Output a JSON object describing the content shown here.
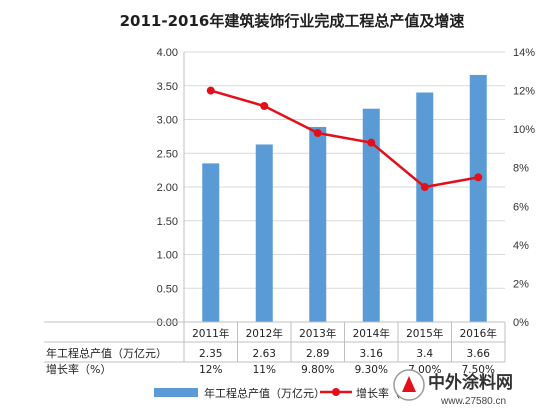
{
  "chart_data": {
    "type": "bar",
    "title": "2011-2016年建筑装饰行业完成工程总产值及增速",
    "categories": [
      "2011年",
      "2012年",
      "2013年",
      "2014年",
      "2015年",
      "2016年"
    ],
    "series": [
      {
        "name": "年工程总产值（万亿元）",
        "type": "bar",
        "axis": "left",
        "color": "#5b9bd5",
        "values": [
          2.35,
          2.63,
          2.89,
          3.16,
          3.4,
          3.66
        ]
      },
      {
        "name": "增长率（%）",
        "type": "line",
        "axis": "right",
        "color": "#e3101b",
        "values": [
          12,
          11.2,
          9.8,
          9.3,
          7.0,
          7.5
        ]
      }
    ],
    "ylim_left": [
      0,
      4
    ],
    "yticks_left": [
      "0.00",
      "0.50",
      "1.00",
      "1.50",
      "2.00",
      "2.50",
      "3.00",
      "3.50",
      "4.00"
    ],
    "ylim_right": [
      0,
      14
    ],
    "yticks_right": [
      "0%",
      "2%",
      "4%",
      "6%",
      "8%",
      "10%",
      "12%",
      "14%"
    ],
    "legend_position": "bottom",
    "data_table": {
      "rows": [
        {
          "header": "年工程总产值（万亿元）",
          "cells": [
            "2.35",
            "2.63",
            "2.89",
            "3.16",
            "3.4",
            "3.66"
          ]
        },
        {
          "header": "增长率（%）",
          "cells": [
            "12%",
            "11%",
            "9.80%",
            "9.30%",
            "7.00%",
            "7.50%"
          ]
        }
      ]
    }
  },
  "legend": {
    "bar_label": "年工程总产值（万亿元）",
    "line_label": "增长率（%"
  },
  "watermark": {
    "name": "中外涂料网",
    "url": "www.27580.cn"
  }
}
